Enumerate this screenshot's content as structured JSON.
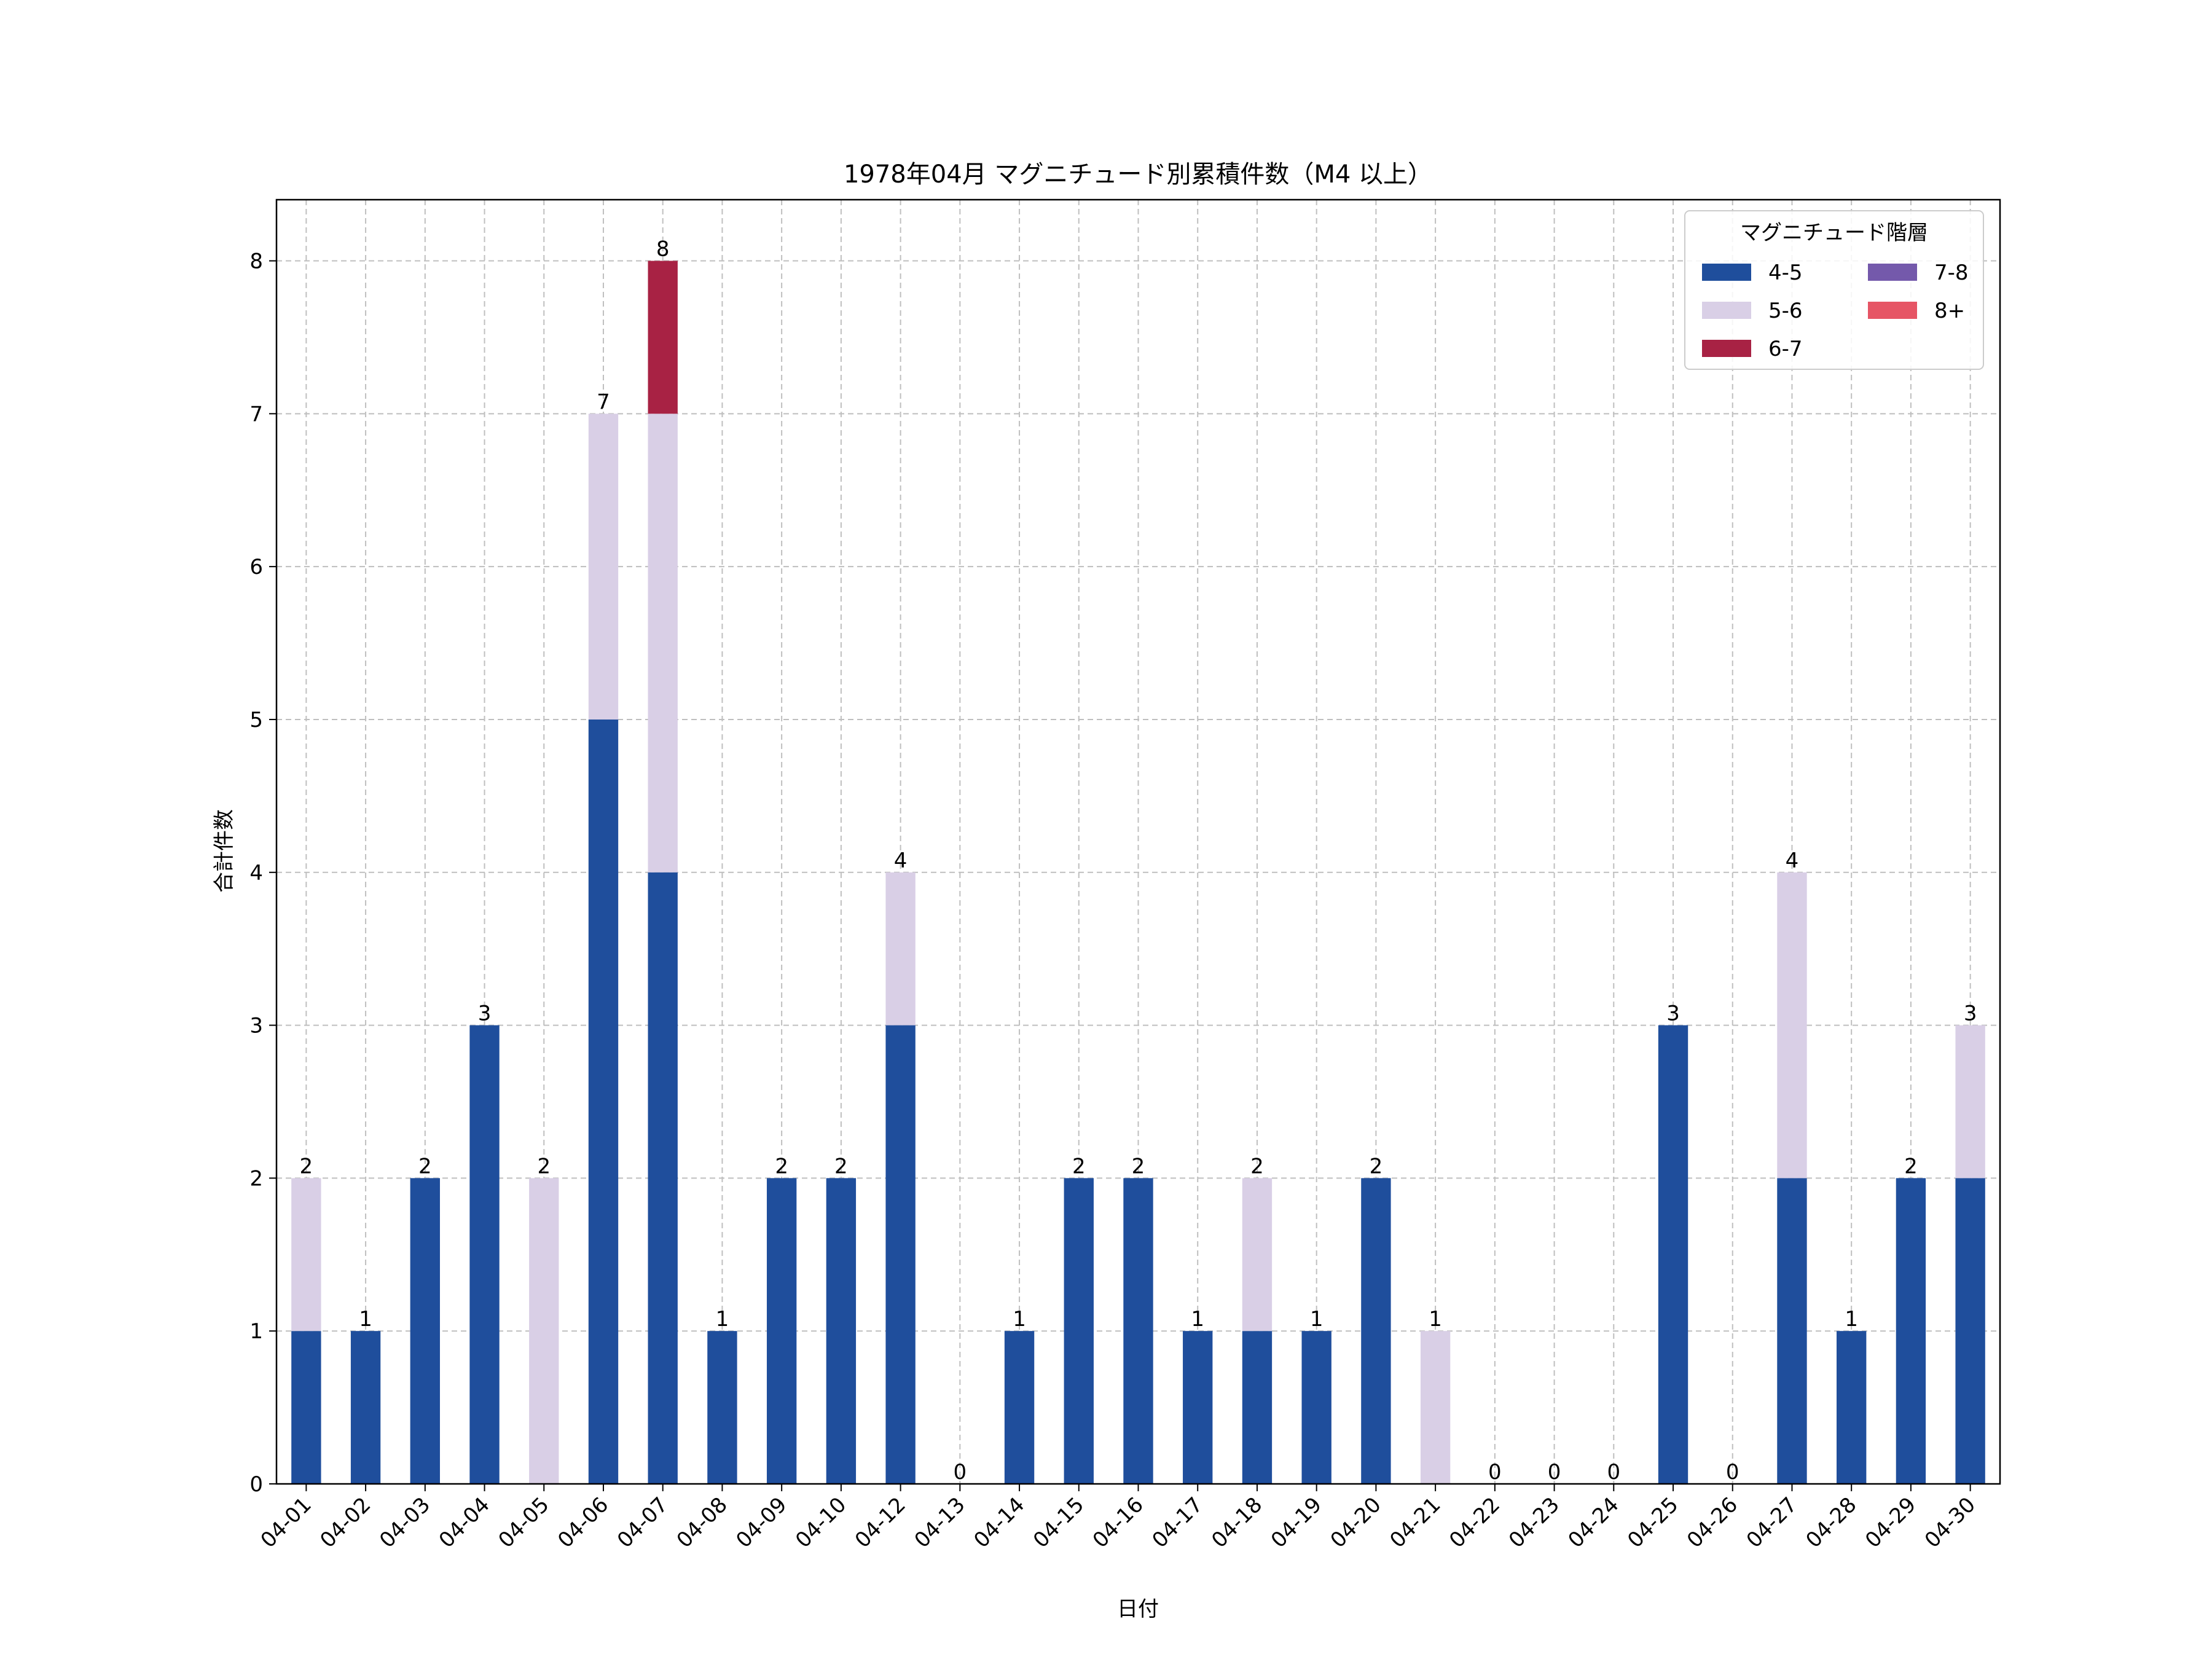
{
  "chart_data": {
    "type": "bar",
    "stacked": true,
    "title": "1978年04月 マグニチュード別累積件数（M4 以上）",
    "xlabel": "日付",
    "ylabel": "合計件数",
    "ylim": [
      0,
      8.4
    ],
    "yticks": [
      0,
      1,
      2,
      3,
      4,
      5,
      6,
      7,
      8
    ],
    "grid": true,
    "legend_title": "マグニチュード階層",
    "legend_position": "top-right",
    "categories": [
      "04-01",
      "04-02",
      "04-03",
      "04-04",
      "04-05",
      "04-06",
      "04-07",
      "04-08",
      "04-09",
      "04-10",
      "04-12",
      "04-13",
      "04-14",
      "04-15",
      "04-16",
      "04-17",
      "04-18",
      "04-19",
      "04-20",
      "04-21",
      "04-22",
      "04-23",
      "04-24",
      "04-25",
      "04-26",
      "04-27",
      "04-28",
      "04-29",
      "04-30"
    ],
    "series": [
      {
        "name": "4-5",
        "color": "#1f4e9c",
        "values": [
          1,
          1,
          2,
          3,
          0,
          5,
          4,
          1,
          2,
          2,
          3,
          0,
          1,
          2,
          2,
          1,
          1,
          1,
          2,
          0,
          0,
          0,
          0,
          3,
          0,
          2,
          1,
          2,
          2
        ]
      },
      {
        "name": "5-6",
        "color": "#d9cfe6",
        "values": [
          1,
          0,
          0,
          0,
          2,
          2,
          3,
          0,
          0,
          0,
          1,
          0,
          0,
          0,
          0,
          0,
          1,
          0,
          0,
          1,
          0,
          0,
          0,
          0,
          0,
          2,
          0,
          0,
          1
        ]
      },
      {
        "name": "6-7",
        "color": "#a82244",
        "values": [
          0,
          0,
          0,
          0,
          0,
          0,
          1,
          0,
          0,
          0,
          0,
          0,
          0,
          0,
          0,
          0,
          0,
          0,
          0,
          0,
          0,
          0,
          0,
          0,
          0,
          0,
          0,
          0,
          0
        ]
      },
      {
        "name": "7-8",
        "color": "#7459ab",
        "values": [
          0,
          0,
          0,
          0,
          0,
          0,
          0,
          0,
          0,
          0,
          0,
          0,
          0,
          0,
          0,
          0,
          0,
          0,
          0,
          0,
          0,
          0,
          0,
          0,
          0,
          0,
          0,
          0,
          0
        ]
      },
      {
        "name": "8+",
        "color": "#e65565",
        "values": [
          0,
          0,
          0,
          0,
          0,
          0,
          0,
          0,
          0,
          0,
          0,
          0,
          0,
          0,
          0,
          0,
          0,
          0,
          0,
          0,
          0,
          0,
          0,
          0,
          0,
          0,
          0,
          0,
          0
        ]
      }
    ],
    "totals": [
      2,
      1,
      2,
      3,
      2,
      7,
      8,
      1,
      2,
      2,
      4,
      0,
      1,
      2,
      2,
      1,
      2,
      1,
      2,
      1,
      0,
      0,
      0,
      3,
      0,
      4,
      1,
      2,
      3
    ]
  }
}
